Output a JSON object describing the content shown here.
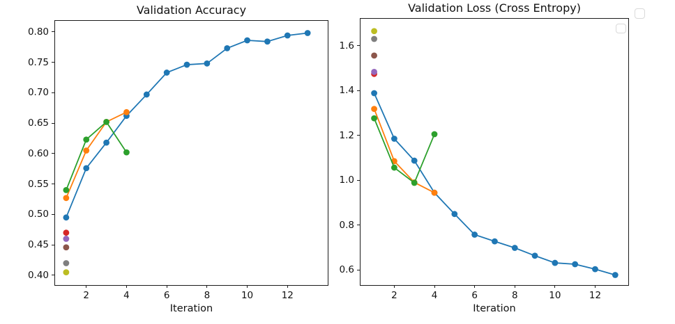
{
  "figure": {
    "background": "#ffffff",
    "spine_color": "#1a1a1a"
  },
  "chart_data": [
    {
      "type": "line",
      "title": "Validation Accuracy",
      "xlabel": "Iteration",
      "ylabel": "",
      "grid": false,
      "xlim": [
        0.45,
        14.0
      ],
      "ylim": [
        0.384,
        0.818
      ],
      "x_ticks": [
        2,
        4,
        6,
        8,
        10,
        12
      ],
      "x_tick_labels": [
        "2",
        "4",
        "6",
        "8",
        "10",
        "12"
      ],
      "y_ticks": [
        0.4,
        0.45,
        0.5,
        0.55,
        0.6,
        0.65,
        0.7,
        0.75,
        0.8
      ],
      "y_tick_labels": [
        "0.40",
        "0.45",
        "0.50",
        "0.55",
        "0.60",
        "0.65",
        "0.70",
        "0.75",
        "0.80"
      ],
      "series": [
        {
          "name": "run-blue",
          "color": "#1f77b4",
          "marker": "circle",
          "x": [
            1,
            2,
            3,
            4,
            5,
            6,
            7,
            8,
            9,
            10,
            11,
            12,
            13
          ],
          "y": [
            0.495,
            0.576,
            0.618,
            0.662,
            0.697,
            0.733,
            0.746,
            0.748,
            0.773,
            0.786,
            0.784,
            0.794,
            0.798
          ]
        },
        {
          "name": "run-orange",
          "color": "#ff7f0e",
          "marker": "circle",
          "x": [
            1,
            2,
            3,
            4
          ],
          "y": [
            0.527,
            0.605,
            0.652,
            0.668
          ]
        },
        {
          "name": "run-green",
          "color": "#2ca02c",
          "marker": "circle",
          "x": [
            1,
            2,
            3,
            4
          ],
          "y": [
            0.54,
            0.623,
            0.652,
            0.602
          ]
        },
        {
          "name": "run-red",
          "color": "#d62728",
          "marker": "circle",
          "x": [
            1
          ],
          "y": [
            0.47
          ]
        },
        {
          "name": "run-purple",
          "color": "#9467bd",
          "marker": "circle",
          "x": [
            1
          ],
          "y": [
            0.46
          ]
        },
        {
          "name": "run-brown",
          "color": "#8c564b",
          "marker": "circle",
          "x": [
            1
          ],
          "y": [
            0.446
          ]
        },
        {
          "name": "run-gray",
          "color": "#7f7f7f",
          "marker": "circle",
          "x": [
            1
          ],
          "y": [
            0.42
          ]
        },
        {
          "name": "run-olive",
          "color": "#bcbd22",
          "marker": "circle",
          "x": [
            1
          ],
          "y": [
            0.405
          ]
        }
      ]
    },
    {
      "type": "line",
      "title": "Validation Loss (Cross Entropy)",
      "xlabel": "Iteration",
      "ylabel": "",
      "grid": false,
      "xlim": [
        0.32,
        13.65
      ],
      "ylim": [
        0.532,
        1.72
      ],
      "x_ticks": [
        2,
        4,
        6,
        8,
        10,
        12
      ],
      "x_tick_labels": [
        "2",
        "4",
        "6",
        "8",
        "10",
        "12"
      ],
      "y_ticks": [
        0.6,
        0.8,
        1.0,
        1.2,
        1.4,
        1.6
      ],
      "y_tick_labels": [
        "0.6",
        "0.8",
        "1.0",
        "1.2",
        "1.4",
        "1.6"
      ],
      "legend": {
        "empty": true,
        "boxes": 2,
        "position": "upper right"
      },
      "series": [
        {
          "name": "run-blue",
          "color": "#1f77b4",
          "marker": "circle",
          "x": [
            1,
            2,
            3,
            4,
            5,
            6,
            7,
            8,
            9,
            10,
            11,
            12,
            13
          ],
          "y": [
            1.388,
            1.185,
            1.087,
            0.944,
            0.849,
            0.757,
            0.727,
            0.698,
            0.663,
            0.631,
            0.625,
            0.603,
            0.577
          ]
        },
        {
          "name": "run-orange",
          "color": "#ff7f0e",
          "marker": "circle",
          "x": [
            1,
            2,
            3,
            4
          ],
          "y": [
            1.318,
            1.085,
            0.99,
            0.944
          ]
        },
        {
          "name": "run-green",
          "color": "#2ca02c",
          "marker": "circle",
          "x": [
            1,
            2,
            3,
            4
          ],
          "y": [
            1.276,
            1.056,
            0.988,
            1.205
          ]
        },
        {
          "name": "run-red",
          "color": "#d62728",
          "marker": "circle",
          "x": [
            1
          ],
          "y": [
            1.474
          ]
        },
        {
          "name": "run-purple",
          "color": "#9467bd",
          "marker": "circle",
          "x": [
            1
          ],
          "y": [
            1.483
          ]
        },
        {
          "name": "run-brown",
          "color": "#8c564b",
          "marker": "circle",
          "x": [
            1
          ],
          "y": [
            1.556
          ]
        },
        {
          "name": "run-gray",
          "color": "#7f7f7f",
          "marker": "circle",
          "x": [
            1
          ],
          "y": [
            1.63
          ]
        },
        {
          "name": "run-olive",
          "color": "#bcbd22",
          "marker": "circle",
          "x": [
            1
          ],
          "y": [
            1.665
          ]
        }
      ]
    }
  ]
}
